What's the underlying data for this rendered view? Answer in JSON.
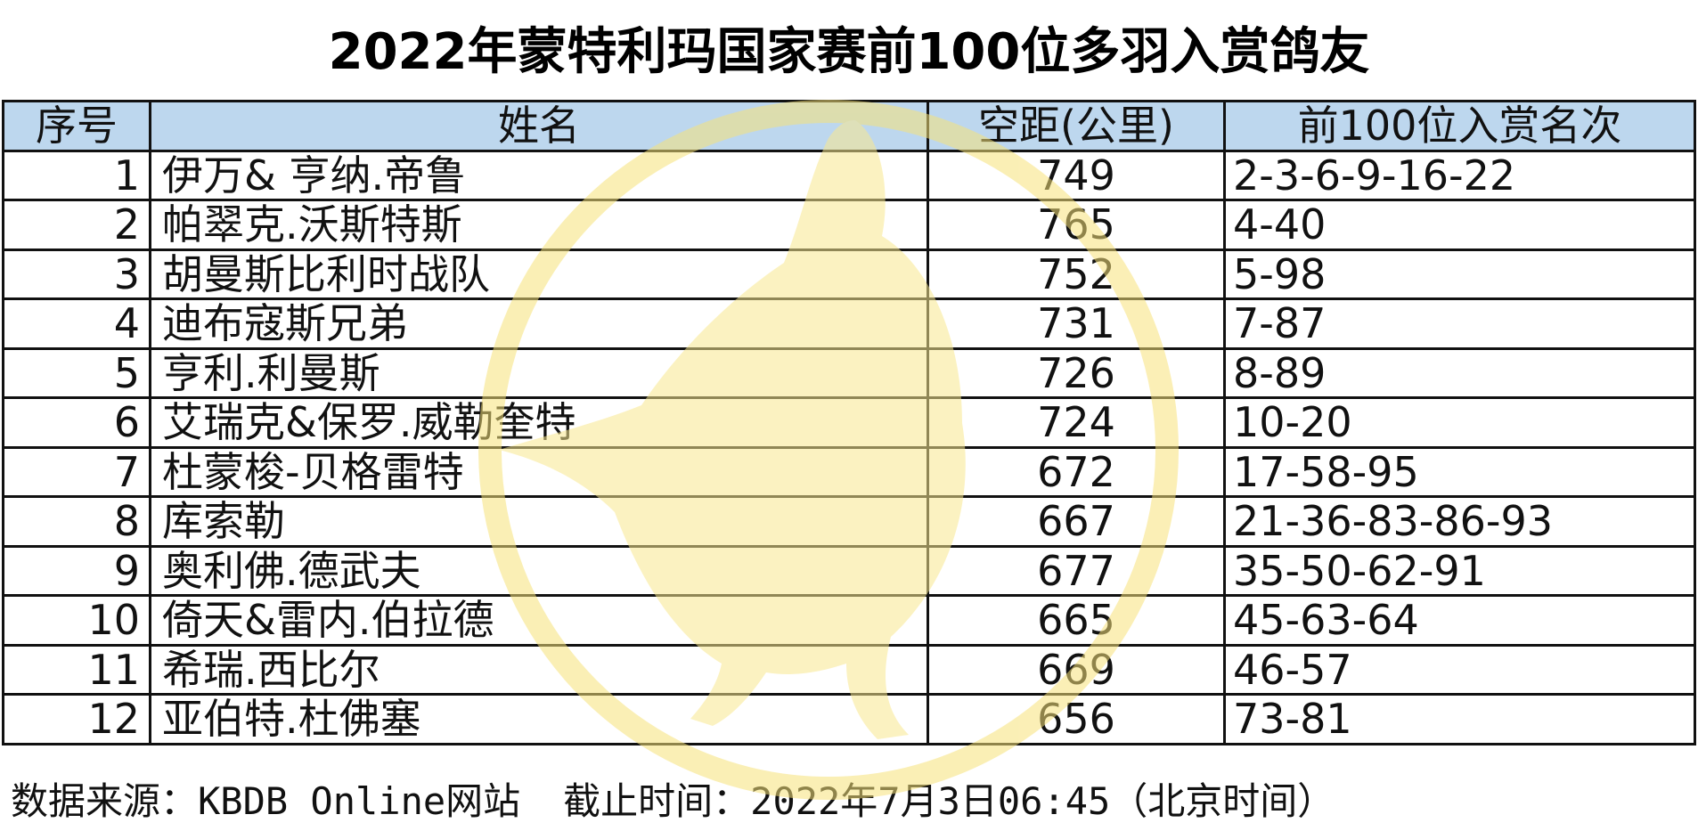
{
  "title": "2022年蒙特利玛国家赛前100位多羽入赏鸽友",
  "table": {
    "headers": [
      "序号",
      "姓名",
      "空距(公里)",
      "前100位入赏名次"
    ],
    "rows": [
      {
        "no": "1",
        "name": "伊万& 亨纳.帝鲁",
        "distance": "749",
        "ranks": "2-3-6-9-16-22"
      },
      {
        "no": "2",
        "name": "帕翠克.沃斯特斯",
        "distance": "765",
        "ranks": "4-40"
      },
      {
        "no": "3",
        "name": "胡曼斯比利时战队",
        "distance": "752",
        "ranks": "5-98"
      },
      {
        "no": "4",
        "name": "迪布寇斯兄弟",
        "distance": "731",
        "ranks": "7-87"
      },
      {
        "no": "5",
        "name": "亨利.利曼斯",
        "distance": "726",
        "ranks": "8-89"
      },
      {
        "no": "6",
        "name": "艾瑞克&保罗.威勒奎特",
        "distance": "724",
        "ranks": "10-20"
      },
      {
        "no": "7",
        "name": "杜蒙梭-贝格雷特",
        "distance": "672",
        "ranks": "17-58-95"
      },
      {
        "no": "8",
        "name": "库索勒",
        "distance": "667",
        "ranks": "21-36-83-86-93"
      },
      {
        "no": "9",
        "name": "奥利佛.德武夫",
        "distance": "677",
        "ranks": "35-50-62-91"
      },
      {
        "no": "10",
        "name": "倚天&雷内.伯拉德",
        "distance": "665",
        "ranks": "45-63-64"
      },
      {
        "no": "11",
        "name": "希瑞.西比尔",
        "distance": "669",
        "ranks": "46-57"
      },
      {
        "no": "12",
        "name": "亚伯特.杜佛塞",
        "distance": "656",
        "ranks": "73-81"
      }
    ]
  },
  "footer": {
    "source": "数据来源：KBDB Online网站",
    "cutoff": "截止时间：2022年7月3日06:45（北京时间）"
  },
  "colors": {
    "header_bg": "#bdd7ee",
    "border": "#111111",
    "watermark": "#fbeea8"
  },
  "watermark_icon": "pigeon-logo"
}
